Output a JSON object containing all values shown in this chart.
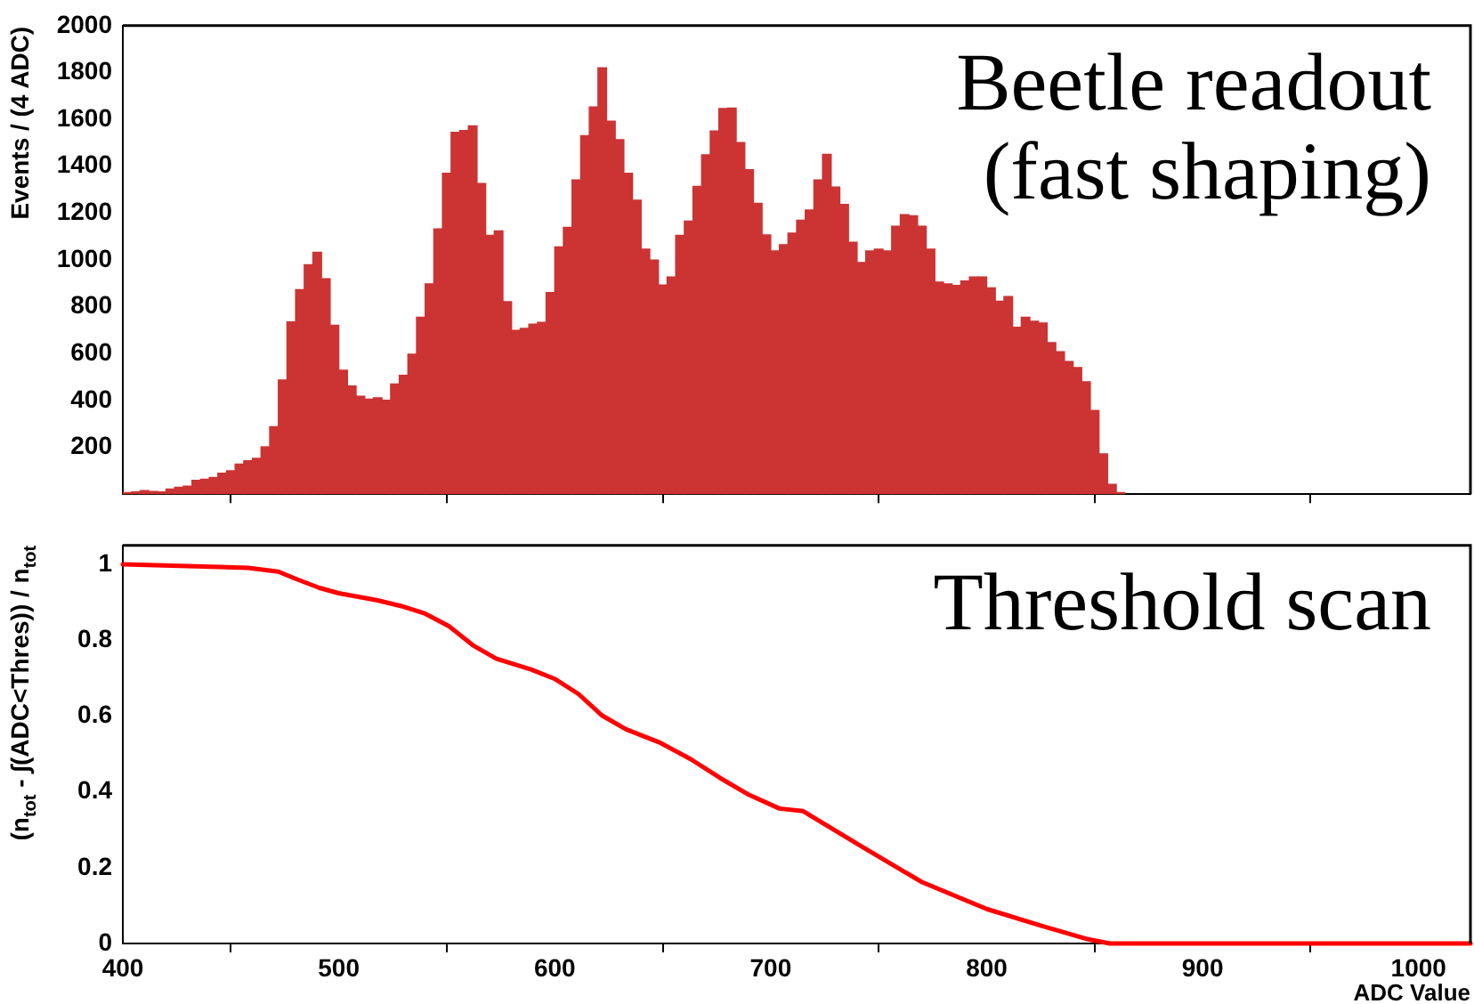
{
  "chart_data": [
    {
      "type": "histogram",
      "ylabel": "Events / (4 ADC)",
      "annotations": [
        "Beetle readout",
        "(fast shaping)"
      ],
      "color": "#cc3333",
      "bins": [
        400,
        404,
        408,
        412,
        416,
        420,
        424,
        428,
        432,
        436,
        440,
        444,
        448,
        452,
        456,
        460,
        464,
        468,
        472,
        476,
        480,
        484,
        488,
        492,
        496,
        500,
        504,
        508,
        512,
        516,
        520,
        524,
        528,
        532,
        536,
        540,
        544,
        548,
        552,
        556,
        560,
        564,
        568,
        572,
        576,
        580,
        584,
        588,
        592,
        596,
        600,
        604,
        608,
        612,
        616,
        620,
        624,
        628,
        632,
        636,
        640,
        644,
        648,
        652,
        656,
        660,
        664,
        668,
        672,
        676,
        680,
        684,
        688,
        692,
        696,
        700,
        704,
        708,
        712,
        716,
        720,
        724,
        728,
        732,
        736,
        740,
        744,
        748,
        752,
        756,
        760,
        764,
        768,
        772,
        776,
        780,
        784,
        788,
        792,
        796,
        800,
        804,
        808,
        812,
        816,
        820,
        824,
        828,
        832,
        836,
        840,
        844,
        848,
        852,
        856,
        860,
        864
      ],
      "values": [
        7,
        10,
        15,
        12,
        10,
        22,
        30,
        34,
        59,
        64,
        71,
        89,
        100,
        128,
        143,
        153,
        202,
        288,
        487,
        735,
        873,
        979,
        1033,
        920,
        721,
        529,
        462,
        418,
        406,
        411,
        401,
        470,
        507,
        598,
        755,
        898,
        1132,
        1370,
        1545,
        1552,
        1572,
        1326,
        1105,
        1124,
        822,
        699,
        708,
        726,
        733,
        861,
        1055,
        1139,
        1341,
        1530,
        1653,
        1820,
        1592,
        1513,
        1370,
        1255,
        1046,
        999,
        893,
        927,
        1105,
        1166,
        1314,
        1449,
        1550,
        1646,
        1648,
        1501,
        1385,
        1242,
        1107,
        1038,
        1065,
        1114,
        1169,
        1213,
        1341,
        1451,
        1311,
        1237,
        1075,
        989,
        1038,
        1046,
        1038,
        1144,
        1193,
        1188,
        1144,
        1046,
        905,
        898,
        891,
        910,
        927,
        927,
        881,
        824,
        844,
        713,
        755,
        738,
        731,
        647,
        608,
        566,
        541,
        480,
        357,
        172,
        42,
        7
      ],
      "xlim": [
        400,
        1024
      ],
      "xticks": [
        400,
        500,
        600,
        700,
        800,
        900,
        1000
      ],
      "ylim": [
        0,
        2000
      ],
      "yticks": [
        200,
        400,
        600,
        800,
        1000,
        1200,
        1400,
        1600,
        1800,
        2000
      ],
      "tick_labels": "y"
    },
    {
      "type": "line",
      "xlabel": "ADC Value",
      "ylabel": "(n$_{tot}$ - ∫(ADC<Thres)) / n$_{tot}$",
      "annotations": [
        "Threshold scan"
      ],
      "marker": "none",
      "series": [
        {
          "color": "#ff0000",
          "x": [
            400,
            458,
            472,
            480,
            491,
            500,
            518,
            529,
            540,
            551,
            562,
            573,
            589,
            600,
            611,
            622,
            633,
            649,
            663,
            677,
            690,
            704,
            715,
            742,
            770,
            800,
            825,
            847,
            857,
            1024
          ],
          "values": [
            1.0,
            0.991,
            0.981,
            0.962,
            0.938,
            0.924,
            0.905,
            0.89,
            0.87,
            0.837,
            0.787,
            0.751,
            0.723,
            0.698,
            0.658,
            0.601,
            0.565,
            0.529,
            0.486,
            0.435,
            0.392,
            0.356,
            0.349,
            0.256,
            0.162,
            0.091,
            0.047,
            0.011,
            0,
            0
          ]
        }
      ],
      "xlim": [
        400,
        1024
      ],
      "xticks": [
        400,
        500,
        600,
        700,
        800,
        900,
        1000
      ],
      "ylim": [
        0,
        1.05
      ],
      "yticks": [
        0,
        0.2,
        0.4,
        0.6,
        0.8,
        1
      ]
    }
  ]
}
